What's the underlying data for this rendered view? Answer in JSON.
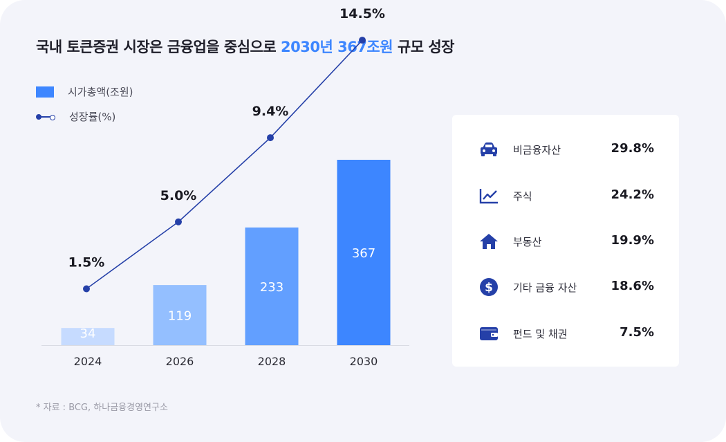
{
  "header": {
    "title_prefix": "국내 토큰증권 시장은 금융업을 중심으로 ",
    "title_highlight": "2030년 367조원",
    "title_suffix": " 규모 성장"
  },
  "legend": {
    "bar_label": "시가총액(조원)",
    "line_label": "성장률(%)"
  },
  "chart_data": {
    "type": "bar",
    "categories": [
      "2024",
      "2026",
      "2028",
      "2030"
    ],
    "series": [
      {
        "name": "시가총액(조원)",
        "type": "bar",
        "values": [
          34,
          119,
          233,
          367
        ],
        "value_labels": [
          "34",
          "119",
          "233",
          "367"
        ]
      },
      {
        "name": "성장률(%)",
        "type": "line",
        "values": [
          1.5,
          5.0,
          9.4,
          14.5
        ],
        "value_labels": [
          "1.5%",
          "5.0%",
          "9.4%",
          "14.5%"
        ]
      }
    ],
    "bar_colors": [
      "#c6dbff",
      "#94bfff",
      "#629fff",
      "#3d86ff"
    ],
    "line_color": "#2540a8",
    "title": "",
    "xlabel": "",
    "ylabel": "",
    "grid": false,
    "legend_position": "top-left"
  },
  "breakdown": {
    "items": [
      {
        "icon": "car-icon",
        "label": "비금융자산",
        "value": "29.8%"
      },
      {
        "icon": "line-chart-icon",
        "label": "주식",
        "value": "24.2%"
      },
      {
        "icon": "house-icon",
        "label": "부동산",
        "value": "19.9%"
      },
      {
        "icon": "dollar-icon",
        "label": "기타 금융 자산",
        "value": "18.6%"
      },
      {
        "icon": "wallet-icon",
        "label": "펀드 및 채권",
        "value": "7.5%"
      }
    ],
    "icon_color": "#2540a8"
  },
  "footer": {
    "source": "* 자료 : BCG, 하나금융경영연구소"
  }
}
